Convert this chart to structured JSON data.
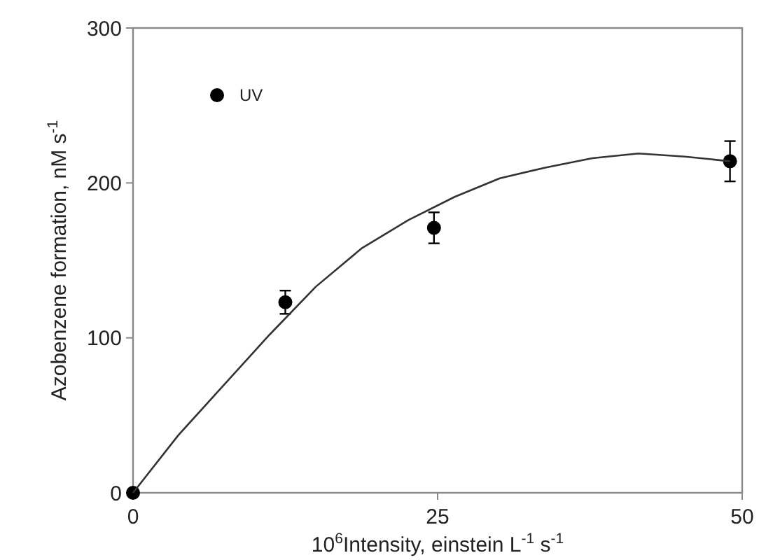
{
  "chart_data": {
    "type": "scatter",
    "xlabel": "10$^{6}$Intensity, einstein L$^{-1}$ s$^{-1}$",
    "ylabel": "Azobenzene formation, nM s$^{-1}$",
    "xlim": [
      0,
      50
    ],
    "xticks": [
      0,
      25,
      50
    ],
    "ylim": [
      0,
      300
    ],
    "yticks": [
      0,
      100,
      200,
      300
    ],
    "legend": "top left",
    "grid": false,
    "marker": "circle",
    "series": [
      {
        "name": "UV",
        "color": "#000000",
        "x": [
          0,
          12.5,
          24.7,
          49
        ],
        "values": [
          0,
          123,
          171,
          214
        ],
        "errors": [
          null,
          7.5,
          10,
          13
        ]
      },
      {
        "type": "line",
        "color": "#333333",
        "line_style": "solid",
        "marker": "none",
        "x": [
          0,
          3.7,
          7.5,
          11.2,
          15,
          18.8,
          22.6,
          26.4,
          30.1,
          33.9,
          37.7,
          41.5,
          45.3,
          49
        ],
        "values": [
          0,
          37,
          70,
          102,
          133,
          158,
          176,
          191,
          203,
          210,
          216,
          219,
          217,
          214
        ]
      }
    ]
  }
}
